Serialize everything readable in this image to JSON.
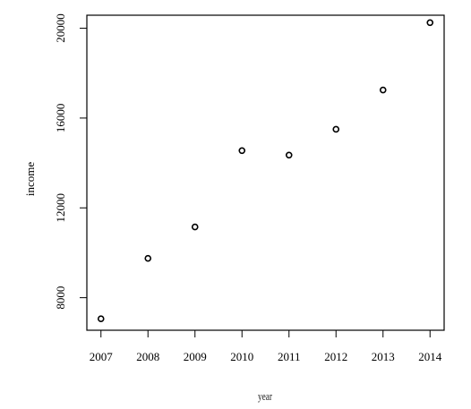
{
  "chart_data": {
    "type": "scatter",
    "title": "",
    "xlabel": "year",
    "ylabel": "income",
    "x": [
      2007,
      2008,
      2009,
      2010,
      2011,
      2012,
      2013,
      2014
    ],
    "y": [
      7060,
      9750,
      11150,
      14550,
      14350,
      15500,
      17250,
      20250
    ],
    "xticks": [
      "2007",
      "2008",
      "2009",
      "2010",
      "2011",
      "2012",
      "2013",
      "2014"
    ],
    "yticks": [
      "8000",
      "12000",
      "16000",
      "20000"
    ],
    "ytick_values": [
      8000,
      12000,
      16000,
      20000
    ],
    "xlim": [
      2006.7,
      2014.3
    ],
    "ylim": [
      6550,
      20580
    ],
    "grid": false,
    "marker": "open-circle",
    "color": "#000000"
  }
}
